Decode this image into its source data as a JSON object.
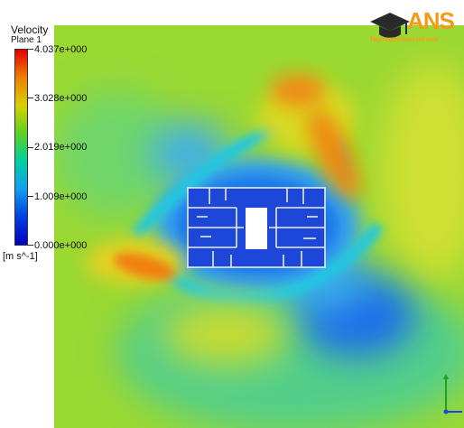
{
  "legend": {
    "title": "Velocity",
    "subtitle": "Plane 1",
    "ticks": [
      "4.037e+000",
      "3.028e+000",
      "2.019e+000",
      "1.009e+000",
      "0.000e+000"
    ],
    "unit": "[m s^-1]",
    "colormap": [
      "#e60000",
      "#f08000",
      "#d8d000",
      "#60d020",
      "#00d0a0",
      "#10a0f0",
      "#0040e0",
      "#0000c0"
    ]
  },
  "logo": {
    "main": "ANS",
    "sub": "Noncommercial use"
  },
  "icons": {
    "logo": "graduation-cap-icon",
    "triad": "axis-triad-icon"
  }
}
